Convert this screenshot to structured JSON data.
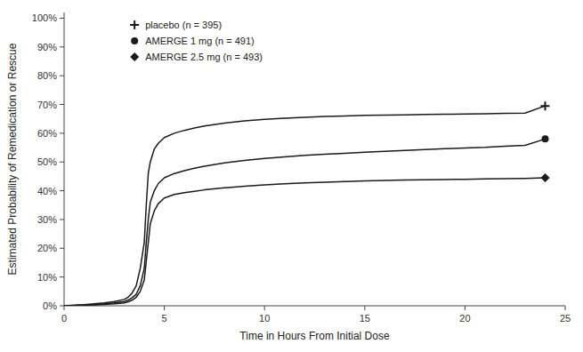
{
  "chart_data": {
    "type": "line",
    "xlabel": "Time in Hours From Initial Dose",
    "ylabel": "Estimated Probability of Remedication or Rescue",
    "x": [
      0,
      0.5,
      1.0,
      1.5,
      2.0,
      2.5,
      3.0,
      3.2,
      3.4,
      3.6,
      3.8,
      4.0,
      4.1,
      4.2,
      4.3,
      4.5,
      4.7,
      5.0,
      5.5,
      6.0,
      6.5,
      7.0,
      8.0,
      9.0,
      10.0,
      11.0,
      12.0,
      13.0,
      14.0,
      15.0,
      16.0,
      17.0,
      18.0,
      19.0,
      20.0,
      21.0,
      22.0,
      23.0,
      24.0
    ],
    "xlim": [
      0,
      25
    ],
    "xticks": [
      0,
      5,
      10,
      15,
      20,
      25
    ],
    "ylim": [
      0,
      1.02
    ],
    "yticks": [
      {
        "value": 0,
        "label": "0%"
      },
      {
        "value": 0.1,
        "label": "10%"
      },
      {
        "value": 0.2,
        "label": "20%"
      },
      {
        "value": 0.3,
        "label": "30%"
      },
      {
        "value": 0.4,
        "label": "40%"
      },
      {
        "value": 0.5,
        "label": "50%"
      },
      {
        "value": 0.6,
        "label": "60%"
      },
      {
        "value": 0.7,
        "label": "70%"
      },
      {
        "value": 0.8,
        "label": "80%"
      },
      {
        "value": 0.9,
        "label": "90%"
      },
      {
        "value": 1.0,
        "label": "100%"
      }
    ],
    "grid": false,
    "legend": "upper left",
    "series": [
      {
        "name": "placebo (n = 395)",
        "color": "#1a1a1a",
        "marker": "plus",
        "values": [
          0,
          0.002,
          0.004,
          0.007,
          0.01,
          0.015,
          0.022,
          0.03,
          0.045,
          0.07,
          0.13,
          0.22,
          0.35,
          0.46,
          0.5,
          0.545,
          0.565,
          0.585,
          0.6,
          0.61,
          0.618,
          0.625,
          0.635,
          0.643,
          0.648,
          0.652,
          0.655,
          0.658,
          0.66,
          0.662,
          0.663,
          0.664,
          0.665,
          0.666,
          0.667,
          0.668,
          0.669,
          0.67,
          0.695
        ]
      },
      {
        "name": "AMERGE 1 mg (n = 491)",
        "color": "#1a1a1a",
        "marker": "circle",
        "values": [
          0,
          0.001,
          0.002,
          0.004,
          0.007,
          0.01,
          0.015,
          0.02,
          0.028,
          0.04,
          0.07,
          0.13,
          0.22,
          0.3,
          0.36,
          0.4,
          0.425,
          0.445,
          0.46,
          0.47,
          0.478,
          0.485,
          0.497,
          0.505,
          0.512,
          0.518,
          0.523,
          0.527,
          0.53,
          0.534,
          0.537,
          0.54,
          0.543,
          0.546,
          0.549,
          0.551,
          0.555,
          0.558,
          0.58
        ]
      },
      {
        "name": "AMERGE 2.5 mg (n = 493)",
        "color": "#1a1a1a",
        "marker": "diamond",
        "values": [
          0,
          0.001,
          0.002,
          0.003,
          0.005,
          0.007,
          0.01,
          0.014,
          0.02,
          0.03,
          0.05,
          0.09,
          0.155,
          0.22,
          0.285,
          0.33,
          0.355,
          0.375,
          0.387,
          0.393,
          0.398,
          0.403,
          0.41,
          0.416,
          0.42,
          0.424,
          0.427,
          0.43,
          0.432,
          0.434,
          0.436,
          0.437,
          0.438,
          0.439,
          0.44,
          0.441,
          0.442,
          0.443,
          0.445
        ]
      }
    ]
  }
}
